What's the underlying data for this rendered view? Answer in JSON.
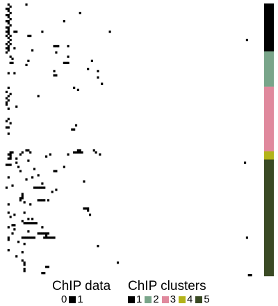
{
  "chart_data": {
    "type": "heatmap",
    "n_rows": 131,
    "n_cols": 128,
    "data_legend": {
      "title": "ChIP data",
      "levels": [
        {
          "label": "0",
          "color": "#ffffff"
        },
        {
          "label": "1",
          "color": "#000000"
        }
      ]
    },
    "cluster_legend": {
      "title": "ChIP clusters",
      "levels": [
        {
          "label": "1",
          "color": "#000000"
        },
        {
          "label": "2",
          "color": "#79a58a"
        },
        {
          "label": "3",
          "color": "#e0899d"
        },
        {
          "label": "4",
          "color": "#b3b31a"
        },
        {
          "label": "5",
          "color": "#3a4a24"
        }
      ]
    },
    "row_clusters": [
      {
        "cluster": "1",
        "rows": 23
      },
      {
        "cluster": "2",
        "rows": 17
      },
      {
        "cluster": "3",
        "rows": 31
      },
      {
        "cluster": "4",
        "rows": 4
      },
      {
        "cluster": "5",
        "rows": 56
      }
    ],
    "cells": [
      [
        0,
        2
      ],
      [
        0,
        11
      ],
      [
        1,
        3
      ],
      [
        2,
        1
      ],
      [
        2,
        2
      ],
      [
        3,
        2
      ],
      [
        4,
        3
      ],
      [
        4,
        38
      ],
      [
        5,
        1
      ],
      [
        5,
        2
      ],
      [
        6,
        2
      ],
      [
        7,
        3
      ],
      [
        8,
        1
      ],
      [
        8,
        2
      ],
      [
        8,
        30
      ],
      [
        9,
        2
      ],
      [
        10,
        3
      ],
      [
        11,
        1
      ],
      [
        11,
        2
      ],
      [
        12,
        2
      ],
      [
        13,
        1
      ],
      [
        13,
        2
      ],
      [
        13,
        5
      ],
      [
        13,
        6
      ],
      [
        13,
        19
      ],
      [
        13,
        53
      ],
      [
        14,
        2
      ],
      [
        15,
        1
      ],
      [
        15,
        3
      ],
      [
        15,
        12
      ],
      [
        15,
        13
      ],
      [
        16,
        2
      ],
      [
        17,
        3
      ],
      [
        17,
        122
      ],
      [
        18,
        2
      ],
      [
        19,
        1
      ],
      [
        19,
        3
      ],
      [
        20,
        2
      ],
      [
        20,
        25
      ],
      [
        20,
        26
      ],
      [
        20,
        27
      ],
      [
        20,
        32
      ],
      [
        21,
        1
      ],
      [
        21,
        2
      ],
      [
        21,
        5
      ],
      [
        22,
        2
      ],
      [
        22,
        14
      ],
      [
        23,
        1
      ],
      [
        23,
        26
      ],
      [
        25,
        3
      ],
      [
        25,
        32
      ],
      [
        26,
        4
      ],
      [
        27,
        12
      ],
      [
        27,
        44
      ],
      [
        28,
        3
      ],
      [
        28,
        4
      ],
      [
        28,
        30
      ],
      [
        28,
        31
      ],
      [
        28,
        32
      ],
      [
        29,
        11
      ],
      [
        31,
        42
      ],
      [
        32,
        25
      ],
      [
        32,
        47
      ],
      [
        33,
        2
      ],
      [
        33,
        5
      ],
      [
        34,
        25
      ],
      [
        34,
        26
      ],
      [
        35,
        47
      ],
      [
        38,
        49
      ],
      [
        40,
        2
      ],
      [
        40,
        35
      ],
      [
        41,
        37
      ],
      [
        42,
        1
      ],
      [
        43,
        3
      ],
      [
        44,
        2
      ],
      [
        44,
        17
      ],
      [
        45,
        1
      ],
      [
        46,
        2
      ],
      [
        47,
        1
      ],
      [
        48,
        1
      ],
      [
        49,
        6
      ],
      [
        50,
        2
      ],
      [
        55,
        2
      ],
      [
        56,
        1
      ],
      [
        57,
        3
      ],
      [
        58,
        36
      ],
      [
        59,
        1
      ],
      [
        59,
        2
      ],
      [
        60,
        34
      ],
      [
        60,
        35
      ],
      [
        62,
        2
      ],
      [
        70,
        11
      ],
      [
        70,
        12
      ],
      [
        70,
        37
      ],
      [
        70,
        38
      ],
      [
        70,
        45
      ],
      [
        71,
        3
      ],
      [
        71,
        4
      ],
      [
        71,
        9
      ],
      [
        71,
        13
      ],
      [
        71,
        35
      ],
      [
        71,
        36
      ],
      [
        71,
        37
      ],
      [
        71,
        38
      ],
      [
        71,
        39
      ],
      [
        71,
        46
      ],
      [
        72,
        2
      ],
      [
        72,
        3
      ],
      [
        72,
        8
      ],
      [
        72,
        23
      ],
      [
        72,
        32
      ],
      [
        72,
        48
      ],
      [
        73,
        3
      ],
      [
        73,
        21
      ],
      [
        74,
        2
      ],
      [
        74,
        3
      ],
      [
        74,
        6
      ],
      [
        75,
        12
      ],
      [
        76,
        6
      ],
      [
        76,
        121
      ],
      [
        77,
        1
      ],
      [
        77,
        2
      ],
      [
        77,
        3
      ],
      [
        78,
        7
      ],
      [
        78,
        30
      ],
      [
        79,
        15
      ],
      [
        80,
        8
      ],
      [
        80,
        25
      ],
      [
        80,
        26
      ],
      [
        82,
        17
      ],
      [
        83,
        2
      ],
      [
        83,
        14
      ],
      [
        84,
        11
      ],
      [
        85,
        40
      ],
      [
        86,
        19
      ],
      [
        87,
        4
      ],
      [
        88,
        1
      ],
      [
        88,
        15
      ],
      [
        88,
        16
      ],
      [
        88,
        17
      ],
      [
        88,
        18
      ],
      [
        88,
        19
      ],
      [
        88,
        20
      ],
      [
        89,
        26
      ],
      [
        90,
        24
      ],
      [
        91,
        9
      ],
      [
        92,
        9
      ],
      [
        93,
        8
      ],
      [
        93,
        9
      ],
      [
        94,
        8
      ],
      [
        94,
        17
      ],
      [
        94,
        18
      ],
      [
        94,
        19
      ],
      [
        94,
        20
      ],
      [
        94,
        22
      ],
      [
        95,
        10
      ],
      [
        96,
        2
      ],
      [
        96,
        13
      ],
      [
        98,
        40
      ],
      [
        98,
        41
      ],
      [
        98,
        42
      ],
      [
        99,
        42
      ],
      [
        100,
        2
      ],
      [
        100,
        10
      ],
      [
        101,
        5
      ],
      [
        101,
        43
      ],
      [
        102,
        3
      ],
      [
        103,
        12
      ],
      [
        103,
        14
      ],
      [
        104,
        9
      ],
      [
        105,
        10
      ],
      [
        105,
        11
      ],
      [
        105,
        12
      ],
      [
        105,
        13
      ],
      [
        105,
        14
      ],
      [
        105,
        15
      ],
      [
        105,
        16
      ],
      [
        106,
        4
      ],
      [
        106,
        5
      ],
      [
        107,
        2
      ],
      [
        107,
        19
      ],
      [
        108,
        5
      ],
      [
        109,
        12
      ],
      [
        110,
        4
      ],
      [
        110,
        17
      ],
      [
        110,
        18
      ],
      [
        110,
        19
      ],
      [
        110,
        20
      ],
      [
        110,
        21
      ],
      [
        110,
        22
      ],
      [
        111,
        21
      ],
      [
        112,
        2
      ],
      [
        112,
        9
      ],
      [
        112,
        10
      ],
      [
        112,
        11
      ],
      [
        112,
        12
      ],
      [
        112,
        13
      ],
      [
        112,
        14
      ],
      [
        112,
        15
      ],
      [
        112,
        20
      ],
      [
        112,
        21
      ],
      [
        112,
        22
      ],
      [
        112,
        23
      ],
      [
        112,
        24
      ],
      [
        112,
        25
      ],
      [
        112,
        122
      ],
      [
        113,
        2
      ],
      [
        114,
        7
      ],
      [
        115,
        10
      ],
      [
        116,
        47
      ],
      [
        118,
        2
      ],
      [
        119,
        9
      ],
      [
        121,
        6
      ],
      [
        123,
        9
      ],
      [
        124,
        10
      ],
      [
        124,
        57
      ],
      [
        125,
        10
      ],
      [
        126,
        21
      ],
      [
        126,
        22
      ],
      [
        127,
        10
      ],
      [
        128,
        10
      ],
      [
        129,
        19
      ],
      [
        129,
        20
      ],
      [
        130,
        123
      ],
      [
        130,
        124
      ]
    ]
  }
}
